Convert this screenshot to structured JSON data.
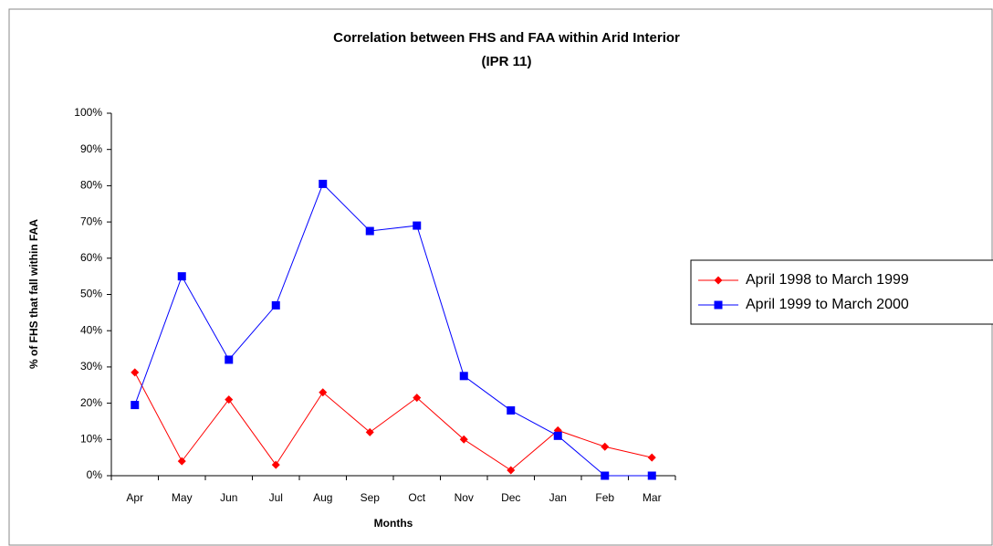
{
  "chart_data": {
    "type": "line",
    "title": "Correlation between FHS and FAA within Arid Interior",
    "subtitle": "(IPR 11)",
    "x_label": "Months",
    "y_label": "% of FHS that fall within FAA",
    "categories": [
      "Apr",
      "May",
      "Jun",
      "Jul",
      "Aug",
      "Sep",
      "Oct",
      "Nov",
      "Dec",
      "Jan",
      "Feb",
      "Mar"
    ],
    "series": [
      {
        "name": "April 1998 to March 1999",
        "color": "#ff0000",
        "marker": "diamond",
        "values": [
          28.5,
          4,
          21,
          3,
          23,
          12,
          21.5,
          10,
          1.5,
          12.5,
          8,
          5
        ]
      },
      {
        "name": "April 1999 to March 2000",
        "color": "#0000ff",
        "marker": "square",
        "values": [
          19.5,
          55,
          32,
          47,
          80.5,
          67.5,
          69,
          27.5,
          18,
          11,
          0,
          0
        ]
      }
    ],
    "ylim": [
      0,
      100
    ],
    "yticks": [
      {
        "value": 0,
        "label": "0%"
      },
      {
        "value": 10,
        "label": "10%"
      },
      {
        "value": 20,
        "label": "20%"
      },
      {
        "value": 30,
        "label": "30%"
      },
      {
        "value": 40,
        "label": "40%"
      },
      {
        "value": 50,
        "label": "50%"
      },
      {
        "value": 60,
        "label": "60%"
      },
      {
        "value": 70,
        "label": "70%"
      },
      {
        "value": 80,
        "label": "80%"
      },
      {
        "value": 90,
        "label": "90%"
      },
      {
        "value": 100,
        "label": "100%"
      }
    ],
    "grid": false,
    "legend": "right"
  }
}
